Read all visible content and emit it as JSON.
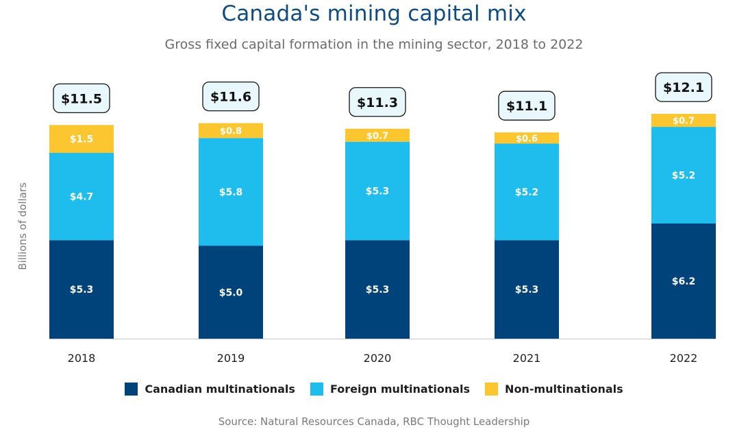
{
  "title": "Canada's mining capital mix",
  "subtitle": "Gross fixed capital formation in the mining sector, 2018 to 2022",
  "source": "Source: Natural Resources Canada, RBC Thought Leadership",
  "colors": {
    "canadian": "#00427a",
    "foreign": "#1fbdee",
    "non": "#fcc630",
    "total_box_fill": "#e8f8fd"
  },
  "chart_data": {
    "type": "bar",
    "stacked": true,
    "categories": [
      "2018",
      "2019",
      "2020",
      "2021",
      "2022"
    ],
    "ylabel": "Billions of dollars",
    "xlabel": "",
    "ylim": [
      0,
      12.1
    ],
    "grid": false,
    "legend_position": "bottom",
    "series": [
      {
        "name": "Canadian multinationals",
        "key": "canadian",
        "values": [
          5.3,
          5.0,
          5.3,
          5.3,
          6.2
        ],
        "labels": [
          "$5.3",
          "$5.0",
          "$5.3",
          "$5.3",
          "$6.2"
        ]
      },
      {
        "name": "Foreign multinationals",
        "key": "foreign",
        "values": [
          4.7,
          5.8,
          5.3,
          5.2,
          5.2
        ],
        "labels": [
          "$4.7",
          "$5.8",
          "$5.3",
          "$5.2",
          "$5.2"
        ]
      },
      {
        "name": "Non-multinationals",
        "key": "non",
        "values": [
          1.5,
          0.8,
          0.7,
          0.6,
          0.7
        ],
        "labels": [
          "$1.5",
          "$0.8",
          "$0.7",
          "$0.6",
          "$0.7"
        ]
      }
    ],
    "totals": [
      11.5,
      11.6,
      11.3,
      11.1,
      12.1
    ],
    "total_labels": [
      "$11.5",
      "$11.6",
      "$11.3",
      "$11.1",
      "$12.1"
    ]
  }
}
